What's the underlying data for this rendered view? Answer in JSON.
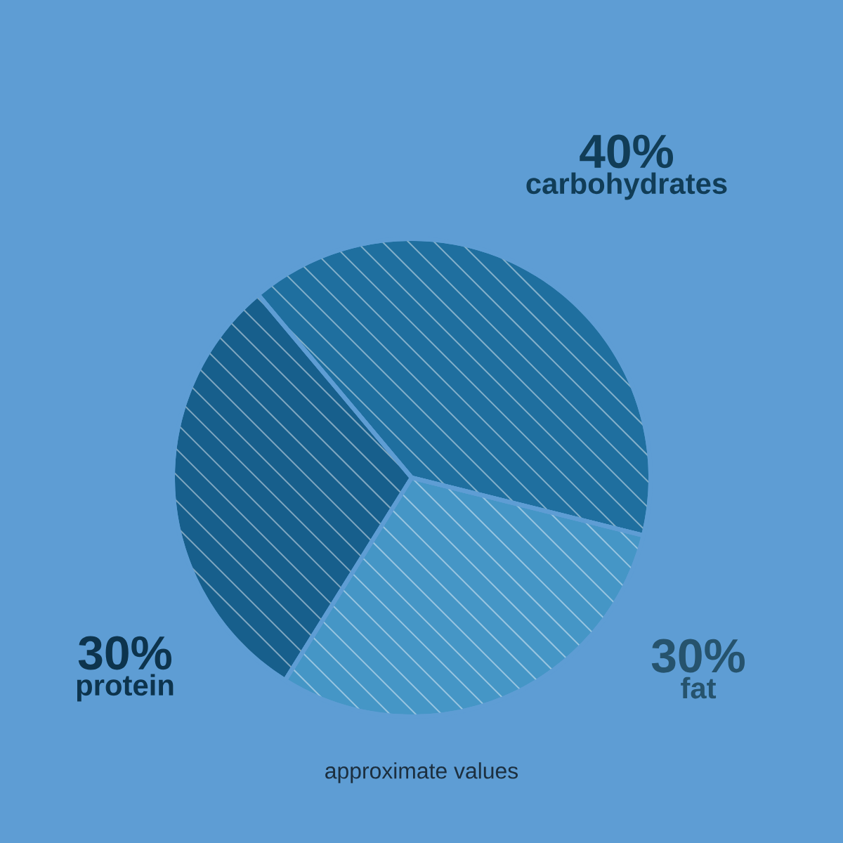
{
  "chart_data": {
    "type": "pie",
    "categories": [
      "carbohydrates",
      "fat",
      "protein"
    ],
    "values": [
      40,
      30,
      30
    ],
    "value_labels": [
      "40%",
      "30%",
      "30%"
    ],
    "colors": [
      "#1f6f9f",
      "#4596c6",
      "#175f8c"
    ],
    "annotations": [
      "approximate values"
    ]
  }
}
